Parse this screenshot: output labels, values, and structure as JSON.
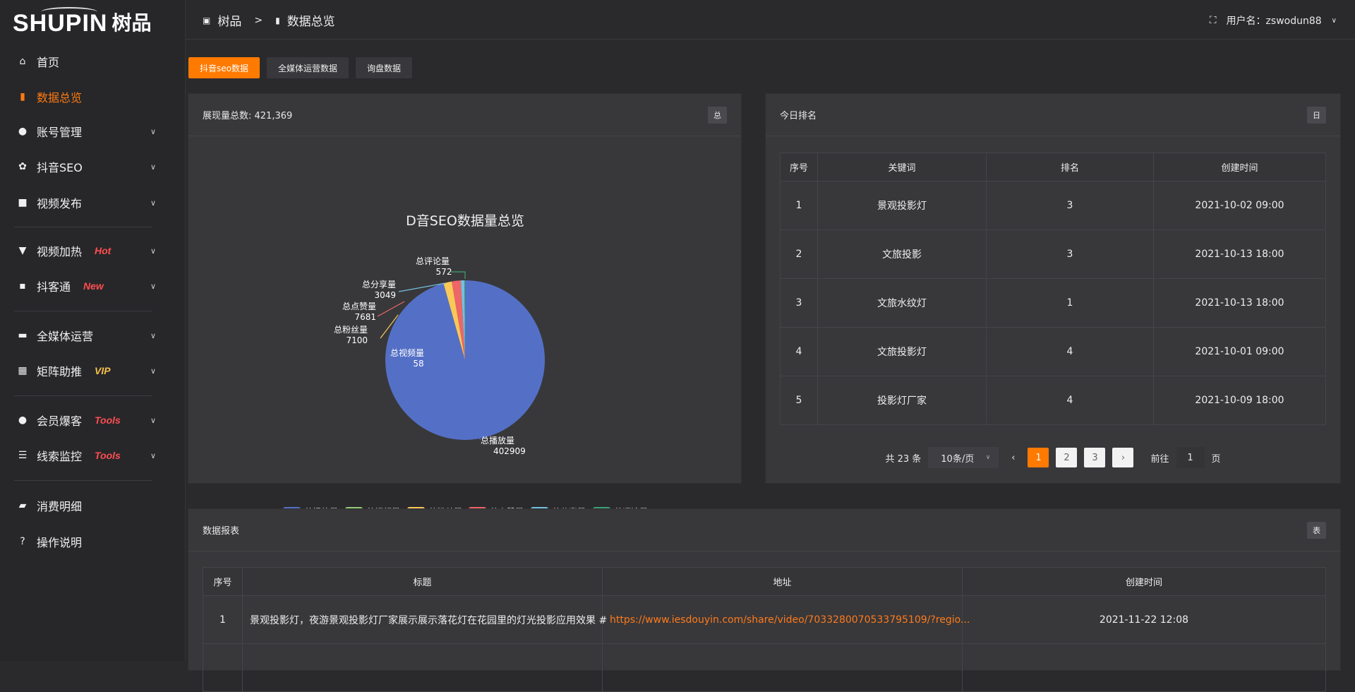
{
  "logo": {
    "en": "SHUPIN",
    "cn": "树品"
  },
  "sidebar": {
    "items": [
      {
        "label": "首页",
        "icon": "⌂",
        "name": "home",
        "tag": ""
      },
      {
        "label": "数据总览",
        "icon": "▮",
        "name": "data-overview",
        "tag": "",
        "active": true
      },
      {
        "label": "账号管理",
        "icon": "●",
        "name": "account",
        "tag": "",
        "chev": true
      },
      {
        "label": "抖音SEO",
        "icon": "✿",
        "name": "douyin-seo",
        "tag": "",
        "chev": true
      },
      {
        "label": "视频发布",
        "icon": "■",
        "name": "video-publish",
        "tag": "",
        "chev": true
      },
      {
        "label": "视频加热",
        "icon": "▼",
        "name": "video-boost",
        "tag": "Hot",
        "tagColor": "#ff4d4f",
        "chev": true
      },
      {
        "label": "抖客通",
        "icon": "▪",
        "name": "doukeitong",
        "tag": "New",
        "tagColor": "#ff4d4f",
        "chev": true
      },
      {
        "label": "全媒体运营",
        "icon": "▬",
        "name": "all-media",
        "tag": "",
        "chev": true
      },
      {
        "label": "矩阵助推",
        "icon": "▦",
        "name": "matrix",
        "tag": "VIP",
        "tagColor": "#f5c04a",
        "chev": true
      },
      {
        "label": "会员爆客",
        "icon": "●",
        "name": "member",
        "tag": "Tools",
        "tagColor": "#ff4d4f",
        "chev": true
      },
      {
        "label": "线索监控",
        "icon": "☰",
        "name": "lead-monitor",
        "tag": "Tools",
        "tagColor": "#ff4d4f",
        "chev": true
      },
      {
        "label": "消费明细",
        "icon": "▰",
        "name": "consumption",
        "tag": ""
      },
      {
        "label": "操作说明",
        "icon": "?",
        "name": "instructions",
        "tag": ""
      }
    ]
  },
  "header": {
    "crumb_root": "树品",
    "crumb_sep": ">",
    "crumb_current": "数据总览",
    "username": "用户名：zswodun88"
  },
  "tabs": [
    "抖音seo数据",
    "全媒体运营数据",
    "询盘数据"
  ],
  "pie_panel": {
    "title": "展现量总数: 421,369",
    "badge": "总"
  },
  "chart_data": {
    "type": "pie",
    "title": "D音SEO数据量总览",
    "categories": [
      "总播放量",
      "总视频量",
      "总粉丝量",
      "总点赞量",
      "总分享量",
      "总评论量"
    ],
    "values": [
      402909,
      58,
      7100,
      7681,
      3049,
      572
    ],
    "colors": [
      "#5470c6",
      "#91cc75",
      "#fac858",
      "#ee6666",
      "#73c0de",
      "#3ba272"
    ],
    "legend": "bottom"
  },
  "rank_panel": {
    "title": "今日排名",
    "badge": "日",
    "columns": [
      "序号",
      "关键词",
      "排名",
      "创建时间"
    ],
    "rows": [
      [
        "1",
        "景观投影灯",
        "3",
        "2021-10-02 09:00"
      ],
      [
        "2",
        "文旅投影",
        "3",
        "2021-10-13 18:00"
      ],
      [
        "3",
        "文旅水纹灯",
        "1",
        "2021-10-13 18:00"
      ],
      [
        "4",
        "文旅投影灯",
        "4",
        "2021-10-01 09:00"
      ],
      [
        "5",
        "投影灯厂家",
        "4",
        "2021-10-09 18:00"
      ]
    ],
    "pager": {
      "total": "共 23 条",
      "page_size": "10条/页",
      "pages": [
        "1",
        "2",
        "3"
      ],
      "current": "1",
      "goto_label": "前往",
      "goto_value": "1",
      "page_suffix": "页"
    }
  },
  "report_panel": {
    "title": "数据报表",
    "badge": "表",
    "columns": [
      "序号",
      "标题",
      "地址",
      "创建时间"
    ],
    "rows": [
      [
        "1",
        "景观投影灯，夜游景观投影灯厂家展示展示落花灯在花园里的灯光投影应用效果 #",
        "https://www.iesdouyin.com/share/video/7033280070533795109/?regio...",
        "2021-11-22 12:08"
      ]
    ]
  }
}
